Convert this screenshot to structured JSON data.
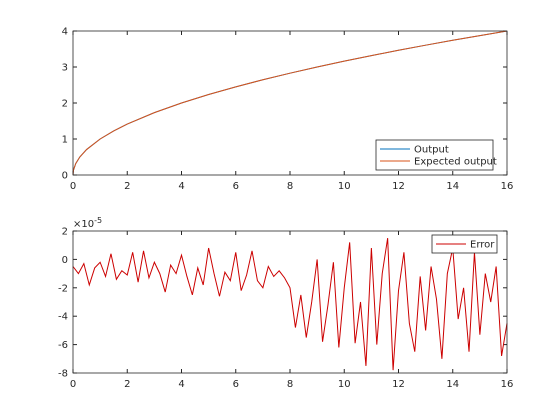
{
  "chart_data": [
    {
      "type": "line",
      "x": [
        0,
        0.02,
        0.1,
        0.25,
        0.5,
        1,
        1.5,
        2,
        3,
        4,
        5,
        6,
        7,
        8,
        9,
        10,
        11,
        12,
        13,
        14,
        15,
        16
      ],
      "series": [
        {
          "name": "Output",
          "color": "#0072bd",
          "values": [
            0,
            0.141,
            0.316,
            0.5,
            0.707,
            1,
            1.225,
            1.414,
            1.732,
            2,
            2.236,
            2.449,
            2.646,
            2.828,
            3,
            3.162,
            3.317,
            3.464,
            3.606,
            3.742,
            3.873,
            4
          ]
        },
        {
          "name": "Expected output",
          "color": "#d95319",
          "values": [
            0,
            0.141,
            0.316,
            0.5,
            0.707,
            1,
            1.225,
            1.414,
            1.732,
            2,
            2.236,
            2.449,
            2.646,
            2.828,
            3,
            3.162,
            3.317,
            3.464,
            3.606,
            3.742,
            3.873,
            4
          ]
        }
      ],
      "xlim": [
        0,
        16
      ],
      "xticks": [
        0,
        2,
        4,
        6,
        8,
        10,
        12,
        14,
        16
      ],
      "ylim": [
        0,
        4
      ],
      "yticks": [
        0,
        1,
        2,
        3,
        4
      ],
      "legend": "southeast"
    },
    {
      "type": "line",
      "x": [
        0,
        0.2,
        0.4,
        0.6,
        0.8,
        1,
        1.2,
        1.4,
        1.6,
        1.8,
        2,
        2.2,
        2.4,
        2.6,
        2.8,
        3,
        3.2,
        3.4,
        3.6,
        3.8,
        4,
        4.2,
        4.4,
        4.6,
        4.8,
        5,
        5.2,
        5.4,
        5.6,
        5.8,
        6,
        6.2,
        6.4,
        6.6,
        6.8,
        7,
        7.2,
        7.4,
        7.6,
        7.8,
        8,
        8.2,
        8.4,
        8.6,
        8.8,
        9,
        9.2,
        9.4,
        9.6,
        9.8,
        10,
        10.2,
        10.4,
        10.6,
        10.8,
        11,
        11.2,
        11.4,
        11.6,
        11.8,
        12,
        12.2,
        12.4,
        12.6,
        12.8,
        13,
        13.2,
        13.4,
        13.6,
        13.8,
        14,
        14.2,
        14.4,
        14.6,
        14.8,
        15,
        15.2,
        15.4,
        15.6,
        15.8,
        16
      ],
      "series": [
        {
          "name": "Error",
          "color": "#cc0000",
          "values": [
            -0.5,
            -1.0,
            -0.3,
            -1.8,
            -0.6,
            -0.2,
            -1.2,
            0.4,
            -1.4,
            -0.8,
            -1.1,
            0.5,
            -1.6,
            0.6,
            -1.3,
            -0.2,
            -1.0,
            -2.3,
            -0.4,
            -1.0,
            0.3,
            -1.2,
            -2.5,
            -0.6,
            -1.8,
            0.8,
            -1.0,
            -2.6,
            -0.9,
            -1.5,
            0.5,
            -2.2,
            -1.1,
            0.6,
            -1.5,
            -2.0,
            -0.5,
            -1.2,
            -0.8,
            -1.3,
            -2.0,
            -4.8,
            -2.5,
            -5.5,
            -3.0,
            0.0,
            -5.8,
            -3.2,
            -0.2,
            -6.2,
            -2.0,
            1.2,
            -5.9,
            -3.0,
            -7.5,
            0.8,
            -6.0,
            -1.0,
            1.5,
            -7.8,
            -2.2,
            0.5,
            -4.5,
            -6.5,
            -1.2,
            -5.0,
            -0.5,
            -2.8,
            -7.0,
            -1.0,
            0.8,
            -4.2,
            -2.0,
            -6.5,
            0.5,
            -5.3,
            -1.0,
            -3.0,
            -0.5,
            -6.8,
            -4.5
          ]
        }
      ],
      "xlim": [
        0,
        16
      ],
      "xticks": [
        0,
        2,
        4,
        6,
        8,
        10,
        12,
        14,
        16
      ],
      "ylim": [
        -8,
        2
      ],
      "yticks": [
        -8,
        -6,
        -4,
        -2,
        0,
        2
      ],
      "y_multiplier": {
        "base": "×10",
        "exponent": "-5"
      },
      "legend": "northeast"
    }
  ]
}
